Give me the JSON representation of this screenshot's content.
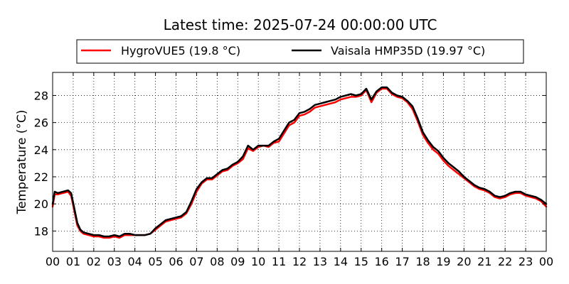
{
  "chart_data": {
    "type": "line",
    "title": "Latest time: 2025-07-24 00:00:00 UTC",
    "xlabel": "",
    "ylabel": "Temperature (°C)",
    "x_ticks": [
      "00",
      "01",
      "02",
      "03",
      "04",
      "05",
      "06",
      "07",
      "08",
      "09",
      "10",
      "11",
      "12",
      "13",
      "14",
      "15",
      "16",
      "17",
      "18",
      "19",
      "20",
      "21",
      "22",
      "23",
      "00"
    ],
    "y_ticks": [
      18,
      20,
      22,
      24,
      26,
      28
    ],
    "xlim": [
      0,
      24
    ],
    "ylim": [
      16.5,
      29.7
    ],
    "grid": true,
    "legend_position": "top",
    "series": [
      {
        "name": "HygroVUE5 (19.8 °C)",
        "color": "#ff0000",
        "x": [
          0,
          0.1,
          0.25,
          0.5,
          0.75,
          0.9,
          1.05,
          1.2,
          1.35,
          1.5,
          1.75,
          2.0,
          2.25,
          2.5,
          2.75,
          3.0,
          3.25,
          3.5,
          3.75,
          4.0,
          4.25,
          4.5,
          4.75,
          5.0,
          5.25,
          5.5,
          5.75,
          6.0,
          6.25,
          6.5,
          6.75,
          7.0,
          7.25,
          7.5,
          7.75,
          8.0,
          8.25,
          8.5,
          8.75,
          9.0,
          9.25,
          9.5,
          9.75,
          10.0,
          10.25,
          10.5,
          10.75,
          11.0,
          11.25,
          11.5,
          11.75,
          12.0,
          12.25,
          12.5,
          12.75,
          13.0,
          13.25,
          13.5,
          13.75,
          14.0,
          14.25,
          14.5,
          14.75,
          15.0,
          15.25,
          15.5,
          15.75,
          16.0,
          16.25,
          16.5,
          16.75,
          17.0,
          17.25,
          17.5,
          17.75,
          18.0,
          18.25,
          18.5,
          18.75,
          19.0,
          19.25,
          19.5,
          19.75,
          20.0,
          20.25,
          20.5,
          20.75,
          21.0,
          21.25,
          21.5,
          21.75,
          22.0,
          22.25,
          22.5,
          22.75,
          23.0,
          23.25,
          23.5,
          23.75,
          24.0
        ],
        "values": [
          19.8,
          20.7,
          20.7,
          20.8,
          20.9,
          20.6,
          19.5,
          18.4,
          18.0,
          17.8,
          17.7,
          17.6,
          17.6,
          17.5,
          17.5,
          17.6,
          17.5,
          17.7,
          17.7,
          17.7,
          17.7,
          17.7,
          17.8,
          18.1,
          18.4,
          18.7,
          18.8,
          18.9,
          19.0,
          19.3,
          20.0,
          20.9,
          21.5,
          21.8,
          21.8,
          22.1,
          22.4,
          22.5,
          22.8,
          23.0,
          23.3,
          24.1,
          23.9,
          24.2,
          24.3,
          24.2,
          24.5,
          24.6,
          25.2,
          25.8,
          26.0,
          26.5,
          26.6,
          26.8,
          27.1,
          27.2,
          27.3,
          27.4,
          27.5,
          27.7,
          27.8,
          27.9,
          27.9,
          28.0,
          28.4,
          27.5,
          28.2,
          28.5,
          28.5,
          28.1,
          27.9,
          27.8,
          27.5,
          27.0,
          26.1,
          25.1,
          24.5,
          24.0,
          23.7,
          23.2,
          22.8,
          22.5,
          22.2,
          21.9,
          21.6,
          21.3,
          21.1,
          21.0,
          20.8,
          20.5,
          20.4,
          20.5,
          20.7,
          20.8,
          20.8,
          20.6,
          20.5,
          20.4,
          20.2,
          19.8
        ]
      },
      {
        "name": "Vaisala HMP35D (19.97 °C)",
        "color": "#000000",
        "x": [
          0,
          0.1,
          0.25,
          0.5,
          0.75,
          0.9,
          1.05,
          1.2,
          1.35,
          1.5,
          1.75,
          2.0,
          2.25,
          2.5,
          2.75,
          3.0,
          3.25,
          3.5,
          3.75,
          4.0,
          4.25,
          4.5,
          4.75,
          5.0,
          5.25,
          5.5,
          5.75,
          6.0,
          6.25,
          6.5,
          6.75,
          7.0,
          7.25,
          7.5,
          7.75,
          8.0,
          8.25,
          8.5,
          8.75,
          9.0,
          9.25,
          9.5,
          9.75,
          10.0,
          10.25,
          10.5,
          10.75,
          11.0,
          11.25,
          11.5,
          11.75,
          12.0,
          12.25,
          12.5,
          12.75,
          13.0,
          13.25,
          13.5,
          13.75,
          14.0,
          14.25,
          14.5,
          14.75,
          15.0,
          15.25,
          15.5,
          15.75,
          16.0,
          16.25,
          16.5,
          16.75,
          17.0,
          17.25,
          17.5,
          17.75,
          18.0,
          18.25,
          18.5,
          18.75,
          19.0,
          19.25,
          19.5,
          19.75,
          20.0,
          20.25,
          20.5,
          20.75,
          21.0,
          21.25,
          21.5,
          21.75,
          22.0,
          22.25,
          22.5,
          22.75,
          23.0,
          23.25,
          23.5,
          23.75,
          24.0
        ],
        "values": [
          20.0,
          20.9,
          20.8,
          20.9,
          21.0,
          20.8,
          19.7,
          18.6,
          18.1,
          17.9,
          17.8,
          17.7,
          17.7,
          17.6,
          17.6,
          17.7,
          17.6,
          17.8,
          17.8,
          17.7,
          17.7,
          17.7,
          17.8,
          18.2,
          18.5,
          18.8,
          18.9,
          19.0,
          19.1,
          19.4,
          20.2,
          21.1,
          21.6,
          21.9,
          21.9,
          22.2,
          22.5,
          22.6,
          22.9,
          23.1,
          23.5,
          24.3,
          24.0,
          24.3,
          24.3,
          24.3,
          24.6,
          24.8,
          25.4,
          26.0,
          26.2,
          26.7,
          26.8,
          27.0,
          27.3,
          27.4,
          27.5,
          27.6,
          27.7,
          27.9,
          28.0,
          28.1,
          28.0,
          28.1,
          28.5,
          27.7,
          28.3,
          28.6,
          28.6,
          28.2,
          28.0,
          27.9,
          27.6,
          27.2,
          26.3,
          25.3,
          24.7,
          24.2,
          23.9,
          23.4,
          23.0,
          22.7,
          22.4,
          22.0,
          21.7,
          21.4,
          21.2,
          21.1,
          20.9,
          20.6,
          20.5,
          20.6,
          20.8,
          20.9,
          20.9,
          20.7,
          20.6,
          20.5,
          20.3,
          20.0
        ]
      }
    ]
  }
}
